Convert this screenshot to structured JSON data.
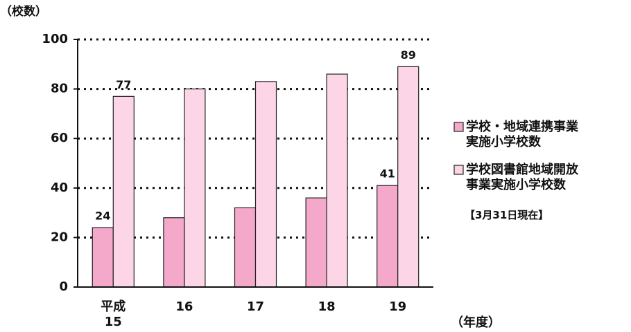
{
  "chart_data": {
    "type": "bar",
    "y_label": "（校数）",
    "x_label": "（年度）",
    "note": "【3月31日現在】",
    "categories": [
      "平成\n15",
      "16",
      "17",
      "18",
      "19"
    ],
    "series": [
      {
        "name": "学校・地域連携事業\n実施小学校数",
        "color": "#f4a9ca",
        "values": [
          24,
          28,
          32,
          36,
          41
        ],
        "value_labels": [
          "24",
          null,
          null,
          null,
          "41"
        ]
      },
      {
        "name": "学校図書館地域開放\n事業実施小学校数",
        "color": "#fcd6e6",
        "values": [
          77,
          80,
          83,
          86,
          89
        ],
        "value_labels": [
          "77",
          null,
          null,
          null,
          "89"
        ]
      }
    ],
    "ylim": [
      0,
      100
    ],
    "yticks": [
      0,
      20,
      40,
      60,
      80,
      100
    ],
    "grid": true,
    "legend": "right"
  }
}
